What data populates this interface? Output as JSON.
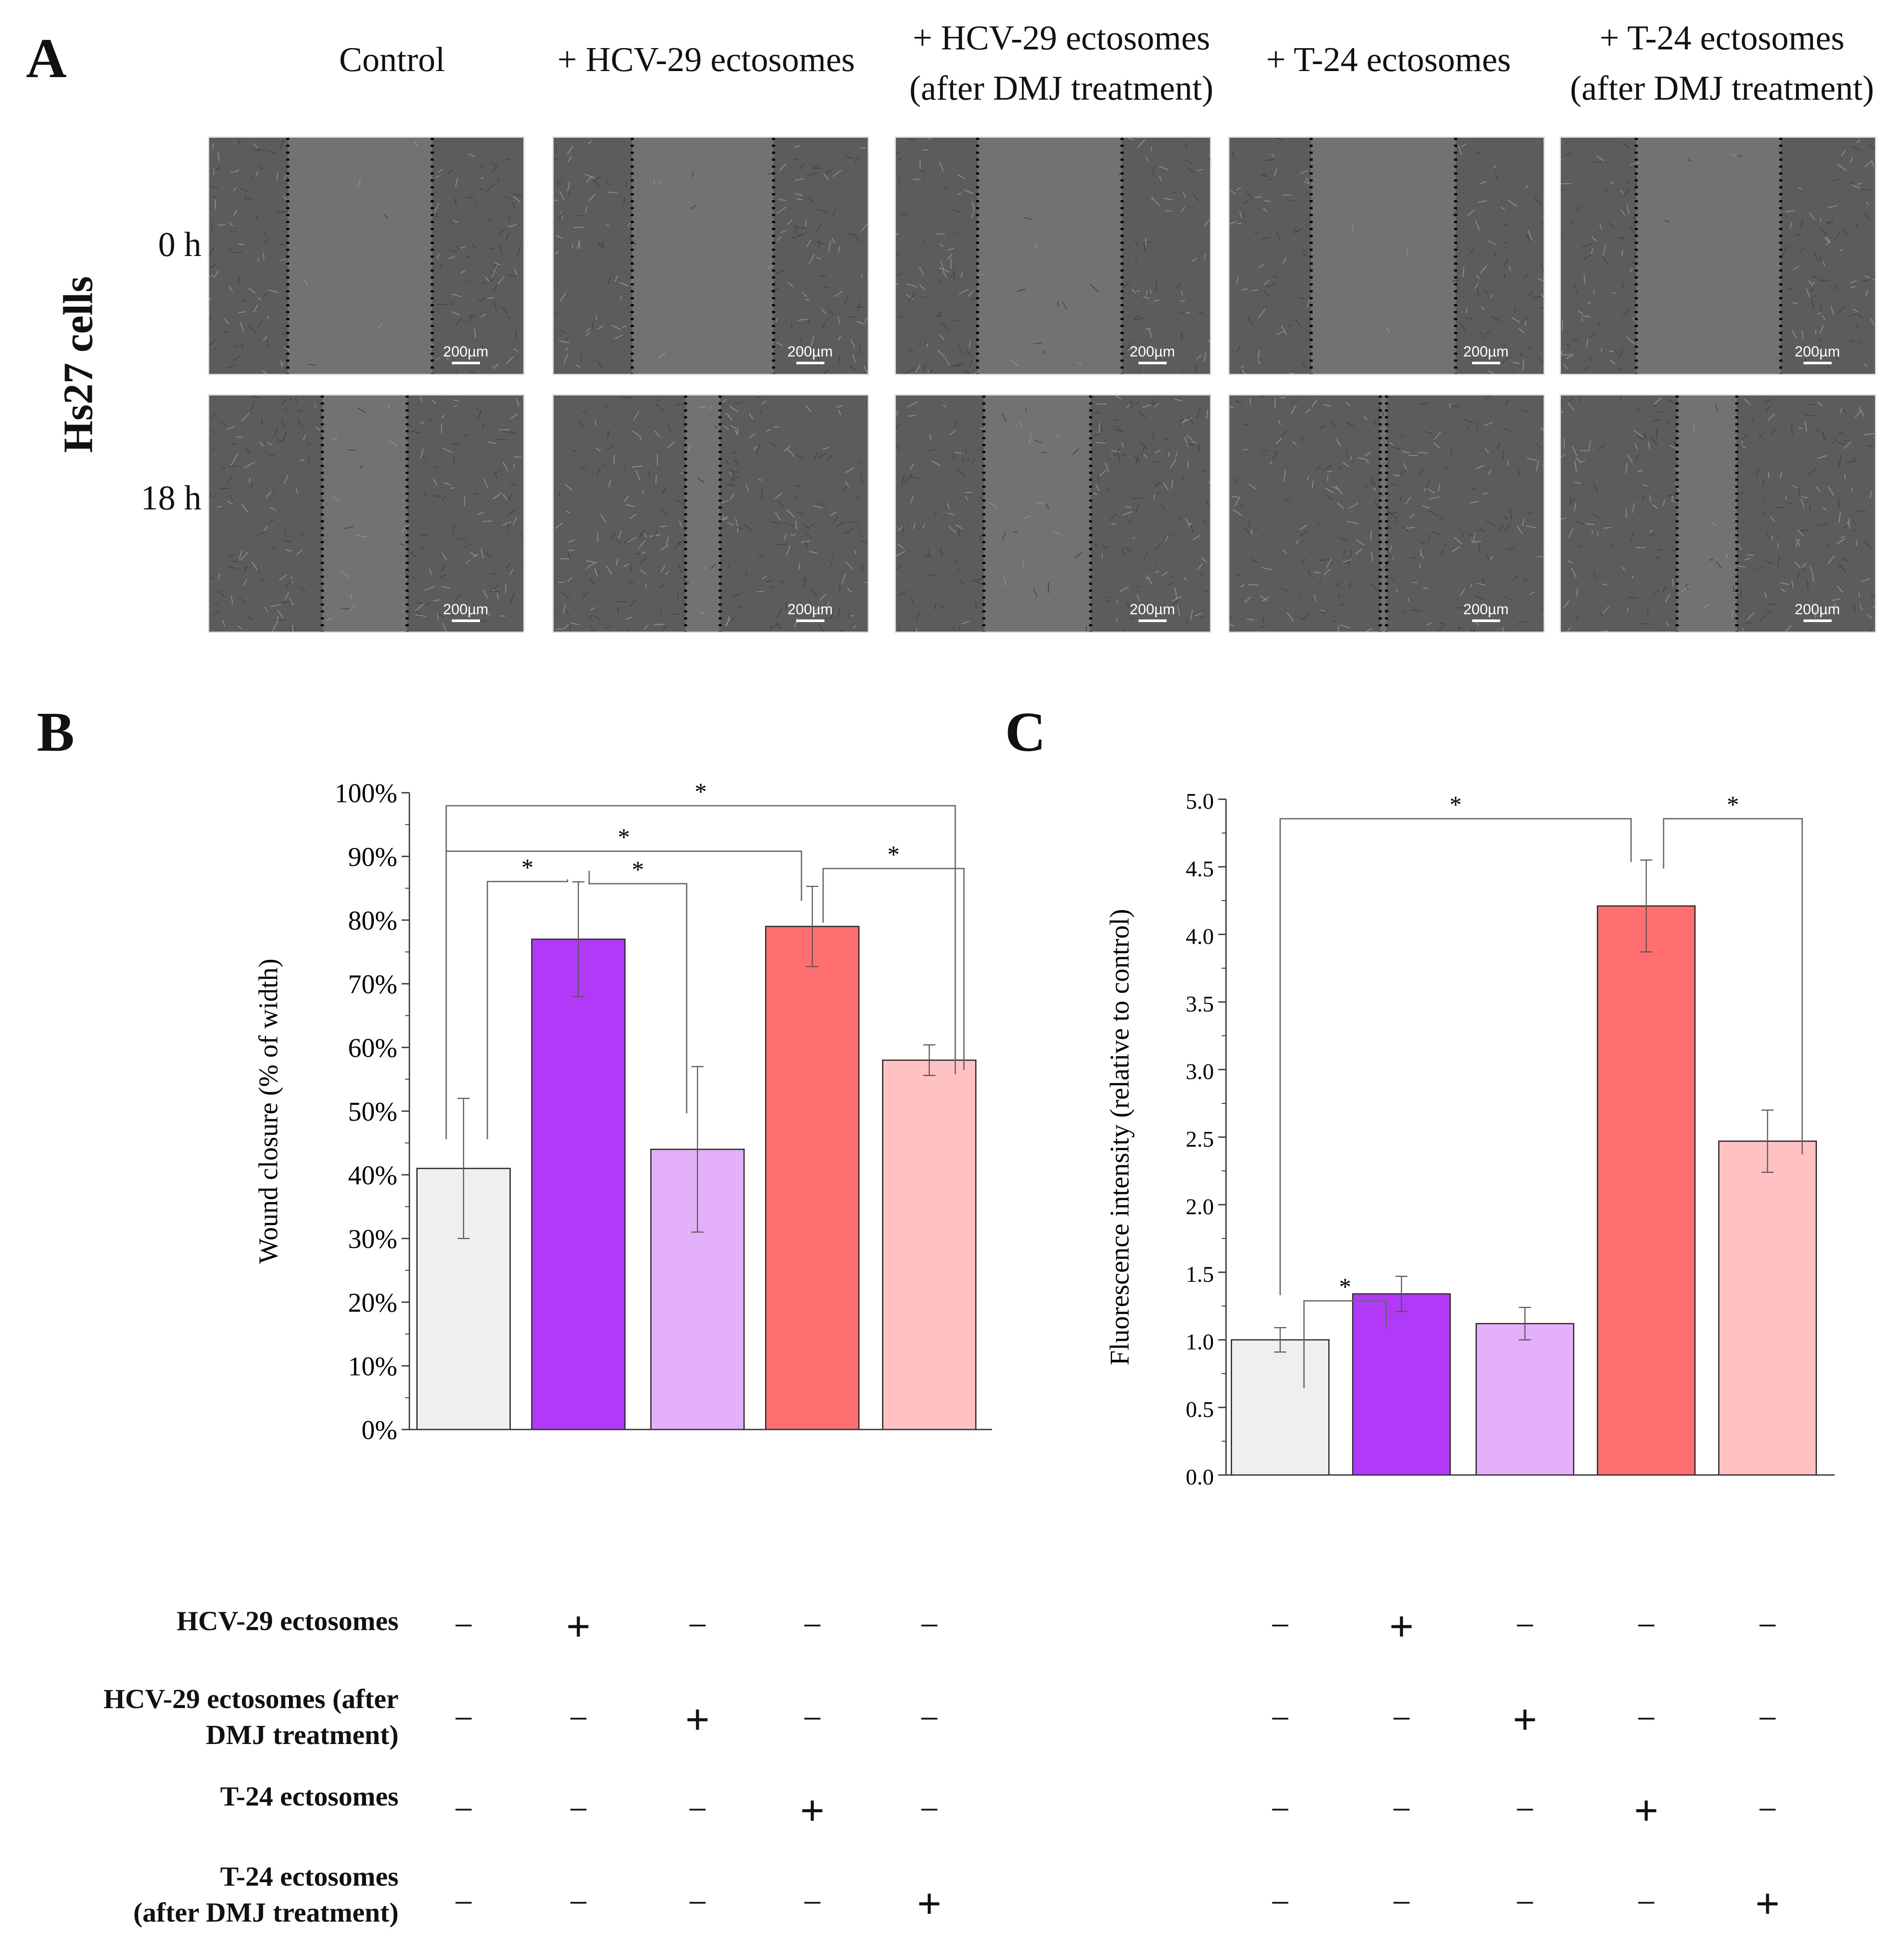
{
  "panel_a": {
    "letter": "A",
    "columns": [
      {
        "line1": "Control",
        "line2": ""
      },
      {
        "line1": "+ HCV-29 ectosomes",
        "line2": ""
      },
      {
        "line1": "+ HCV-29 ectosomes",
        "line2": "(after DMJ treatment)"
      },
      {
        "line1": "+ T-24 ectosomes",
        "line2": ""
      },
      {
        "line1": "+ T-24 ectosomes",
        "line2": "(after DMJ treatment)"
      }
    ],
    "rows": [
      "0 h",
      "18 h"
    ],
    "side_label": "Hs27 cells",
    "scale_bar": "200µm"
  },
  "chart_data": [
    {
      "id": "B",
      "type": "bar",
      "title": "",
      "xlabel": "",
      "ylabel": "Wound closure (% of width)",
      "ylim": [
        0,
        100
      ],
      "yticks": [
        "0%",
        "10%",
        "20%",
        "30%",
        "40%",
        "50%",
        "60%",
        "70%",
        "80%",
        "90%",
        "100%"
      ],
      "categories": [
        "Control",
        "HCV-29 ectosomes",
        "HCV-29 ectosomes (after DMJ treatment)",
        "T-24 ectosomes",
        "T-24 ectosomes (after DMJ treatment)"
      ],
      "values": [
        41,
        77,
        44,
        79,
        58
      ],
      "errors": [
        11,
        9,
        13,
        6.3,
        2.4
      ],
      "colors": [
        "#efefef",
        "#b03af7",
        "#e4b0fb",
        "#ff6f6f",
        "#ffc1c1"
      ],
      "significance": [
        {
          "from": 0,
          "to": 1,
          "label": "*"
        },
        {
          "from": 1,
          "to": 2,
          "label": "*"
        },
        {
          "from": 0,
          "to": 3,
          "label": "*"
        },
        {
          "from": 3,
          "to": 4,
          "label": "*"
        },
        {
          "from": 0,
          "to": 4,
          "label": "*"
        }
      ]
    },
    {
      "id": "C",
      "type": "bar",
      "title": "",
      "xlabel": "",
      "ylabel": "Fluorescence intensity (relative to control)",
      "ylim": [
        0,
        5
      ],
      "yticks": [
        "0.0",
        "0.5",
        "1.0",
        "1.5",
        "2.0",
        "2.5",
        "3.0",
        "3.5",
        "4.0",
        "4.5",
        "5.0"
      ],
      "categories": [
        "Control",
        "HCV-29 ectosomes",
        "HCV-29 ectosomes (after DMJ treatment)",
        "T-24 ectosomes",
        "T-24 ectosomes (after DMJ treatment)"
      ],
      "values": [
        1.0,
        1.34,
        1.12,
        4.21,
        2.47
      ],
      "errors": [
        0.09,
        0.13,
        0.12,
        0.34,
        0.23
      ],
      "colors": [
        "#efefef",
        "#b03af7",
        "#e4b0fb",
        "#ff6f6f",
        "#ffc1c1"
      ],
      "significance": [
        {
          "from": 0,
          "to": 1,
          "label": "*"
        },
        {
          "from": 0,
          "to": 3,
          "label": "*"
        },
        {
          "from": 3,
          "to": 4,
          "label": "*"
        }
      ]
    }
  ],
  "panel_b_letter": "B",
  "panel_c_letter": "C",
  "conditions": {
    "labels": [
      {
        "line1": "HCV-29 ectosomes",
        "line2": ""
      },
      {
        "line1": "HCV-29 ectosomes (after",
        "line2": "DMJ treatment)"
      },
      {
        "line1": "T-24 ectosomes",
        "line2": ""
      },
      {
        "line1": "T-24 ectosomes",
        "line2": "(after DMJ treatment)"
      }
    ],
    "matrix": [
      [
        "−",
        "+",
        "−",
        "−",
        "−"
      ],
      [
        "−",
        "−",
        "+",
        "−",
        "−"
      ],
      [
        "−",
        "−",
        "−",
        "+",
        "−"
      ],
      [
        "−",
        "−",
        "−",
        "−",
        "+"
      ]
    ]
  }
}
